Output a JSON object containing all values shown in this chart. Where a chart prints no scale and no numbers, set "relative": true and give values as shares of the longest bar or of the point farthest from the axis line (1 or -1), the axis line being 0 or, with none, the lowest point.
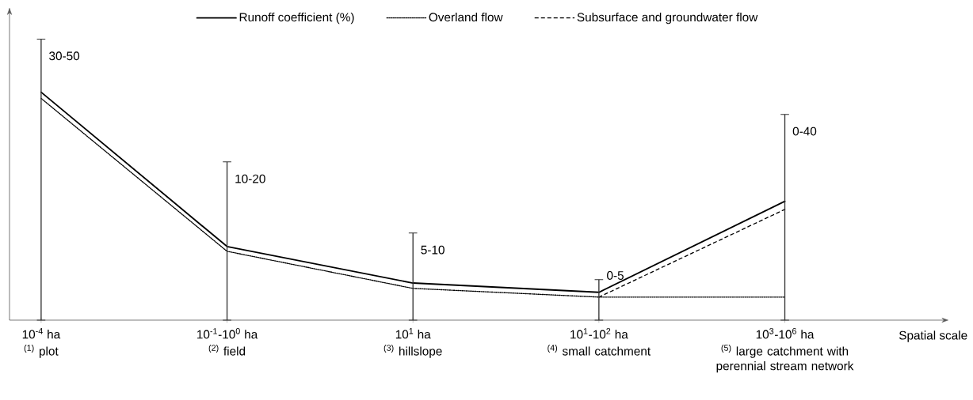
{
  "chart_data": {
    "type": "line",
    "relative": true,
    "xlabel": "Spatial scale",
    "legend": "top",
    "marker": "none",
    "categories": [
      "10$^{-4}$ ha",
      "10$^{-1}$-10$^{0}$ ha",
      "10$^{1}$ ha",
      "10$^{1}$-10$^{2}$ ha",
      "10$^{3}$-10$^{6}$ ha"
    ],
    "series": [
      {
        "name": "Runoff coefficient (%)",
        "color": "#000000",
        "line_style": "solid",
        "values": [
          0.811,
          0.262,
          0.132,
          0.099,
          0.423
        ]
      },
      {
        "name": "Overland flow",
        "color": "#000000",
        "line_style": "dotted",
        "values": [
          0.789,
          0.245,
          0.113,
          0.082,
          0.082
        ]
      },
      {
        "name": "Subsurface and groundwater flow",
        "color": "#000000",
        "line_style": "dashed",
        "values": [
          null,
          null,
          null,
          0.082,
          0.394
        ]
      },
      {
        "type": "bar",
        "color": "#333333",
        "values": [
          1.0,
          0.563,
          0.31,
          0.144,
          0.732
        ]
      }
    ],
    "annotations": [
      "$^{(1)}$ plot",
      "$^{(2)}$ field",
      "$^{(3)}$ hillslope",
      "$^{(4)}$ small catchment",
      "$^{(5)}$ large catchment with perennial stream network",
      "30-50",
      "10-20",
      "5-10",
      "0-5",
      "0-40"
    ]
  }
}
